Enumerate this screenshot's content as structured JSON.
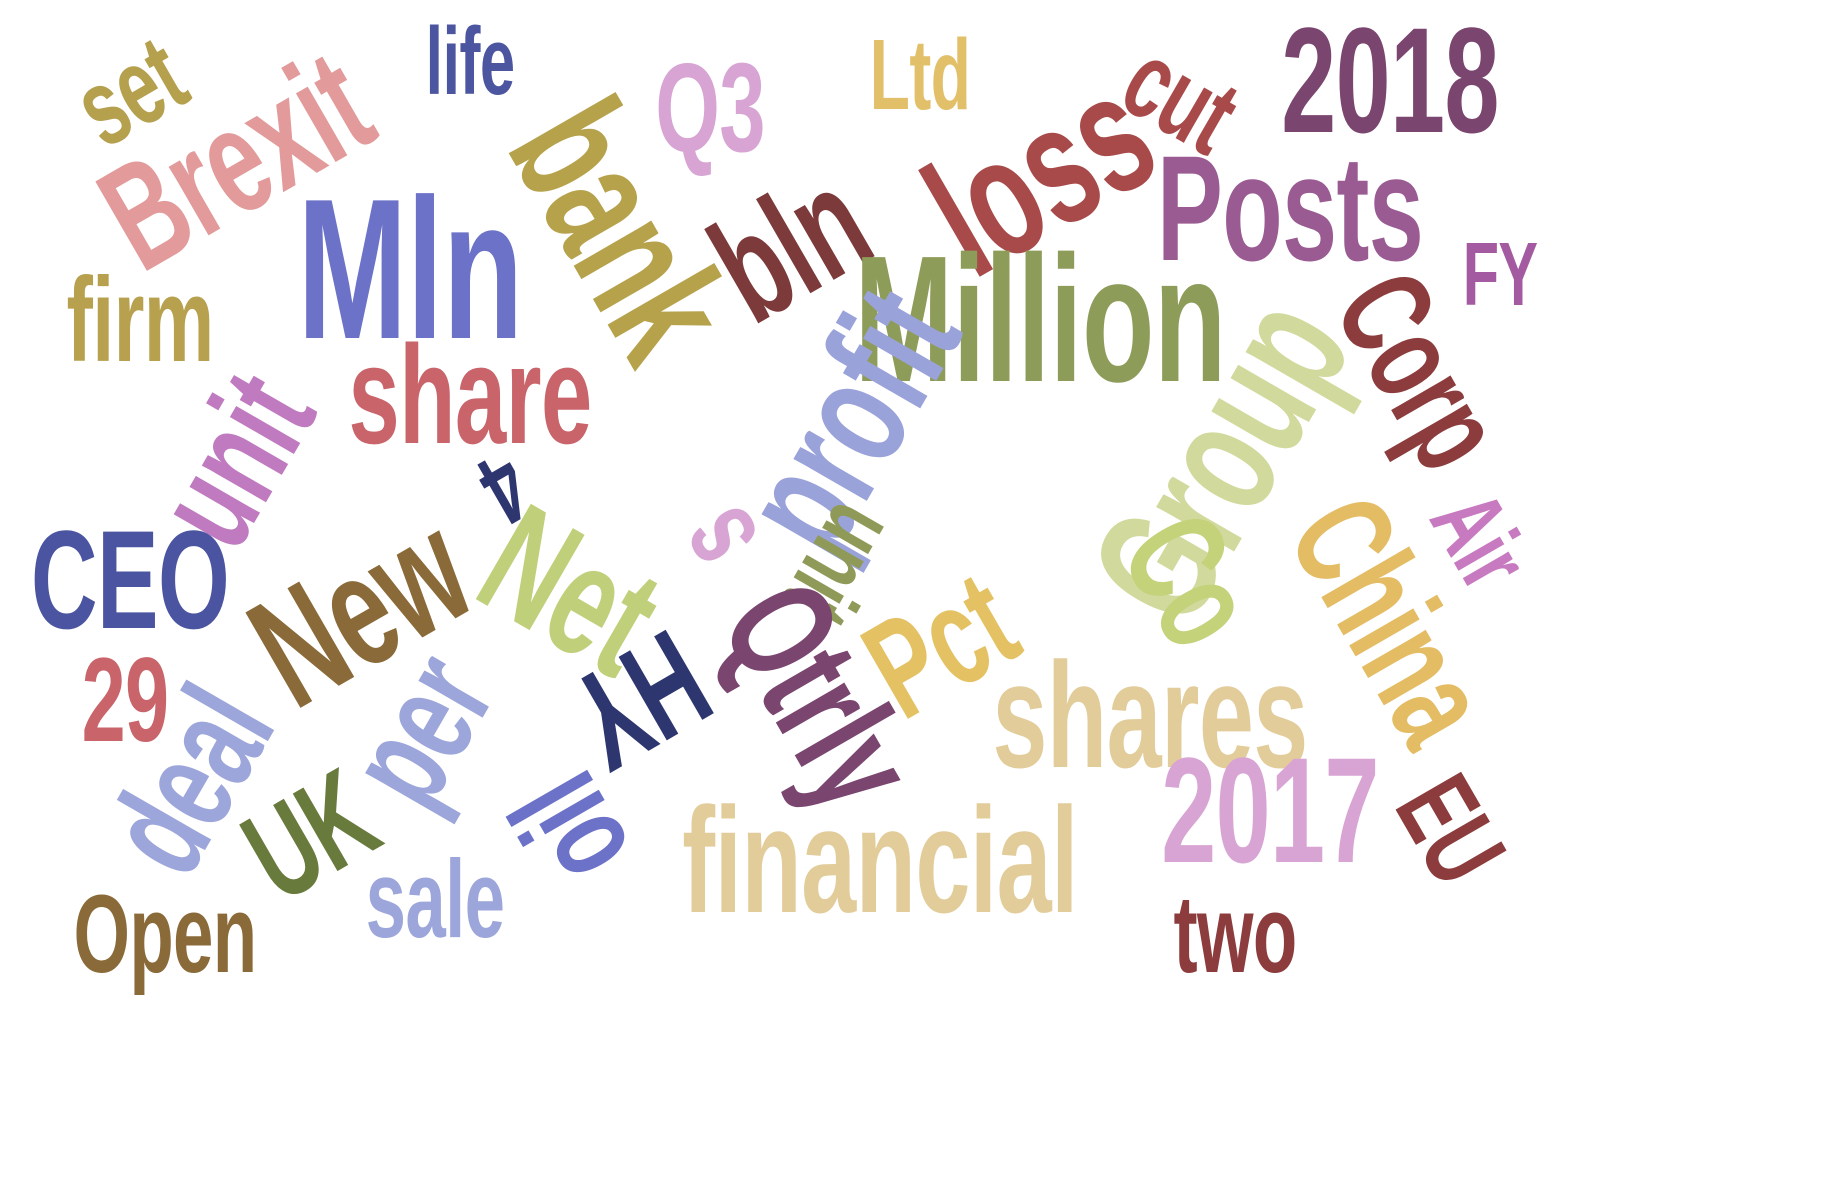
{
  "words": {
    "set": {
      "text": "set",
      "color": "#b5a04e"
    },
    "brexit": {
      "text": "Brexit",
      "color": "#e29a9a"
    },
    "life": {
      "text": "life",
      "color": "#4c56a0"
    },
    "q3": {
      "text": "Q3",
      "color": "#d7a4d3"
    },
    "ltd": {
      "text": "Ltd",
      "color": "#e2c06a"
    },
    "cut": {
      "text": "cut",
      "color": "#a94a4a"
    },
    "y2018": {
      "text": "2018",
      "color": "#7a456f"
    },
    "bank": {
      "text": "bank",
      "color": "#b7a24c"
    },
    "bln": {
      "text": "bln",
      "color": "#7c3a3a"
    },
    "loss": {
      "text": "loss",
      "color": "#a84a4a"
    },
    "posts": {
      "text": "Posts",
      "color": "#9a5a92"
    },
    "mln": {
      "text": "Mln",
      "color": "#6c72c8"
    },
    "million": {
      "text": "Million",
      "color": "#8e9c5a"
    },
    "fy": {
      "text": "FY",
      "color": "#a45aa0"
    },
    "firm": {
      "text": "firm",
      "color": "#b7a04e"
    },
    "share": {
      "text": "share",
      "color": "#c9646a"
    },
    "corp": {
      "text": "Corp",
      "color": "#8c3c3c"
    },
    "unit": {
      "text": "unit",
      "color": "#c07ac0"
    },
    "profit": {
      "text": "profit",
      "color": "#9aa2da"
    },
    "group": {
      "text": "Group",
      "color": "#d2d99c"
    },
    "four": {
      "text": "4",
      "color": "#2e3670"
    },
    "net": {
      "text": "Net",
      "color": "#c0d07a"
    },
    "s": {
      "text": "s",
      "color": "#d8a4d4"
    },
    "unit2": {
      "text": "unit",
      "color": "#909a58"
    },
    "co": {
      "text": "Co",
      "color": "#c4d27a"
    },
    "china": {
      "text": "China",
      "color": "#e4bc64"
    },
    "air": {
      "text": "Air",
      "color": "#c87ac0"
    },
    "ceo": {
      "text": "CEO",
      "color": "#4a54a0"
    },
    "new": {
      "text": "New",
      "color": "#8a6a38"
    },
    "pct": {
      "text": "Pct",
      "color": "#e4c264"
    },
    "n29": {
      "text": "29",
      "color": "#c9646a"
    },
    "deal": {
      "text": "deal",
      "color": "#9ca6da"
    },
    "per": {
      "text": "per",
      "color": "#9ca6da"
    },
    "hy": {
      "text": "HY",
      "color": "#2e3670"
    },
    "qtrly": {
      "text": "Qtrly",
      "color": "#7a456f"
    },
    "shares": {
      "text": "shares",
      "color": "#e2cc9a"
    },
    "uk": {
      "text": "UK",
      "color": "#687a3c"
    },
    "oil": {
      "text": "oil",
      "color": "#6c72c8"
    },
    "y2017": {
      "text": "2017",
      "color": "#d8a4d4"
    },
    "eu": {
      "text": "EU",
      "color": "#8c3c3c"
    },
    "financial": {
      "text": "financial",
      "color": "#e2cc9a"
    },
    "sale": {
      "text": "sale",
      "color": "#9ca6da"
    },
    "open": {
      "text": "Open",
      "color": "#8a6a38"
    },
    "two": {
      "text": "two",
      "color": "#8c3c3c"
    }
  }
}
